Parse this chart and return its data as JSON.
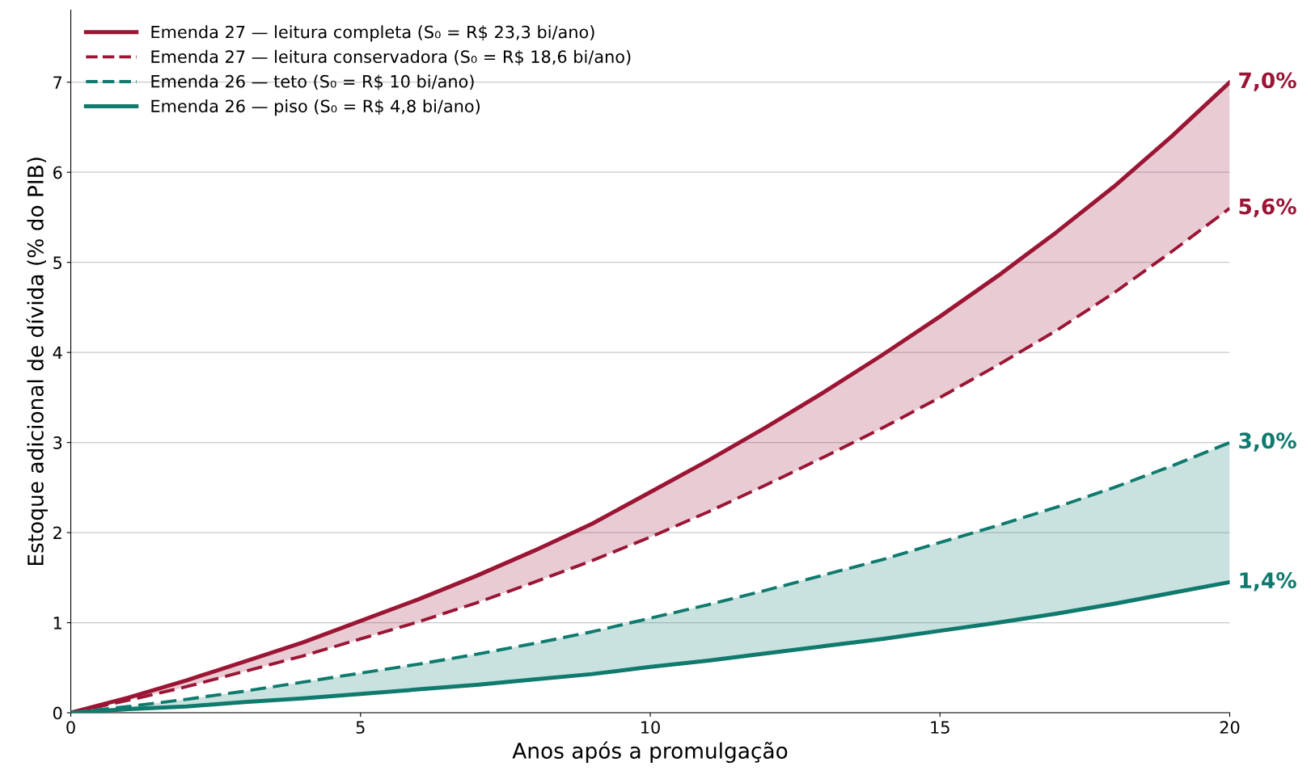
{
  "chart_data": {
    "type": "line",
    "xlabel": "Anos após a promulgação",
    "ylabel": "Estoque adicional de dívida (% do PIB)",
    "x": [
      0,
      1,
      2,
      3,
      4,
      5,
      6,
      7,
      8,
      9,
      10,
      11,
      12,
      13,
      14,
      15,
      16,
      17,
      18,
      19,
      20
    ],
    "xlim": [
      0,
      20
    ],
    "xticks": [
      0,
      5,
      10,
      15,
      20
    ],
    "ylim": [
      0,
      7.8
    ],
    "yticks": [
      0,
      1,
      2,
      3,
      4,
      5,
      6,
      7
    ],
    "grid": "y",
    "legend": "top left",
    "series": [
      {
        "name": "Emenda 27 — leitura completa (S₀ = R$ 23,3 bi/ano)",
        "color": "#9b1535",
        "line_style": "solid",
        "values": [
          0,
          0.17,
          0.36,
          0.57,
          0.78,
          1.02,
          1.26,
          1.52,
          1.8,
          2.1,
          2.45,
          2.8,
          3.17,
          3.56,
          3.97,
          4.4,
          4.85,
          5.33,
          5.84,
          6.4,
          7.0
        ],
        "lower": [
          0,
          0.14,
          0.29,
          0.46,
          0.63,
          0.82,
          1.01,
          1.22,
          1.45,
          1.69,
          1.95,
          2.23,
          2.53,
          2.84,
          3.16,
          3.5,
          3.86,
          4.24,
          4.66,
          5.12,
          5.6
        ],
        "upper": [
          0,
          0.17,
          0.36,
          0.57,
          0.78,
          1.02,
          1.26,
          1.52,
          1.8,
          2.1,
          2.45,
          2.8,
          3.17,
          3.56,
          3.97,
          4.4,
          4.85,
          5.33,
          5.84,
          6.4,
          7.0
        ],
        "value_labels": [
          null,
          null,
          null,
          null,
          null,
          null,
          null,
          null,
          null,
          null,
          null,
          null,
          null,
          null,
          null,
          null,
          null,
          null,
          null,
          null,
          "7,0%"
        ]
      },
      {
        "name": "Emenda 27 — leitura conservadora (S₀ = R$ 18,6 bi/ano)",
        "color": "#9b1535",
        "line_style": "dashed",
        "values": [
          0,
          0.14,
          0.29,
          0.46,
          0.63,
          0.82,
          1.01,
          1.22,
          1.45,
          1.69,
          1.95,
          2.23,
          2.53,
          2.84,
          3.16,
          3.5,
          3.86,
          4.24,
          4.66,
          5.12,
          5.6
        ],
        "value_labels": [
          null,
          null,
          null,
          null,
          null,
          null,
          null,
          null,
          null,
          null,
          null,
          null,
          null,
          null,
          null,
          null,
          null,
          null,
          null,
          null,
          "5,6%"
        ]
      },
      {
        "name": "Emenda 26 — teto (S₀ = R$ 10 bi/ano)",
        "color": "#0f7a6e",
        "line_style": "dashed",
        "values": [
          0,
          0.07,
          0.15,
          0.24,
          0.34,
          0.44,
          0.54,
          0.65,
          0.77,
          0.9,
          1.05,
          1.2,
          1.36,
          1.53,
          1.7,
          1.89,
          2.08,
          2.28,
          2.5,
          2.74,
          3.0
        ],
        "value_labels": [
          null,
          null,
          null,
          null,
          null,
          null,
          null,
          null,
          null,
          null,
          null,
          null,
          null,
          null,
          null,
          null,
          null,
          null,
          null,
          null,
          "3,0%"
        ]
      },
      {
        "name": "Emenda 26 — piso (S₀ = R$ 4,8 bi/ano)",
        "color": "#0f7a6e",
        "line_style": "solid",
        "values": [
          0,
          0.04,
          0.07,
          0.12,
          0.16,
          0.21,
          0.26,
          0.31,
          0.37,
          0.43,
          0.51,
          0.58,
          0.66,
          0.74,
          0.82,
          0.91,
          1.0,
          1.1,
          1.21,
          1.33,
          1.45
        ],
        "lower": [
          0,
          0.04,
          0.07,
          0.12,
          0.16,
          0.21,
          0.26,
          0.31,
          0.37,
          0.43,
          0.51,
          0.58,
          0.66,
          0.74,
          0.82,
          0.91,
          1.0,
          1.1,
          1.21,
          1.33,
          1.45
        ],
        "upper": [
          0,
          0.07,
          0.15,
          0.24,
          0.34,
          0.44,
          0.54,
          0.65,
          0.77,
          0.9,
          1.05,
          1.2,
          1.36,
          1.53,
          1.7,
          1.89,
          2.08,
          2.28,
          2.5,
          2.74,
          3.0
        ],
        "value_labels": [
          null,
          null,
          null,
          null,
          null,
          null,
          null,
          null,
          null,
          null,
          null,
          null,
          null,
          null,
          null,
          null,
          null,
          null,
          null,
          null,
          "1,4%"
        ]
      }
    ]
  }
}
